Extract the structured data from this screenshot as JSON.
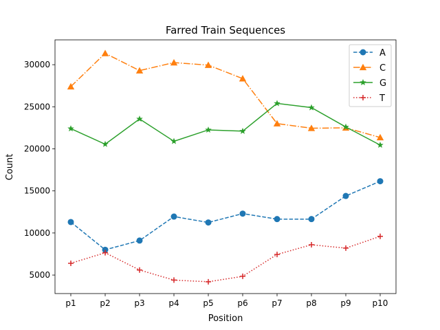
{
  "chart_data": {
    "type": "line",
    "title": "Farred Train Sequences",
    "xlabel": "Position",
    "ylabel": "Count",
    "categories": [
      "p1",
      "p2",
      "p3",
      "p4",
      "p5",
      "p6",
      "p7",
      "p8",
      "p9",
      "p10"
    ],
    "ylim": [
      2800,
      32950
    ],
    "yticks": [
      5000,
      10000,
      15000,
      20000,
      25000,
      30000
    ],
    "grid": false,
    "legend_position": "top-right",
    "series": [
      {
        "name": "A",
        "color": "#1f77b4",
        "line_style": "dashed",
        "marker": "circle",
        "values": [
          11300,
          8000,
          9100,
          11950,
          11250,
          12300,
          11650,
          11650,
          14400,
          16150
        ]
      },
      {
        "name": "C",
        "color": "#ff7f0e",
        "line_style": "dashdot",
        "marker": "triangle",
        "values": [
          27400,
          31350,
          29300,
          30250,
          29950,
          28350,
          23000,
          22450,
          22500,
          21350
        ]
      },
      {
        "name": "G",
        "color": "#2ca02c",
        "line_style": "solid",
        "marker": "star",
        "values": [
          22400,
          20550,
          23550,
          20900,
          22250,
          22100,
          25400,
          24900,
          22600,
          20450
        ]
      },
      {
        "name": "T",
        "color": "#d62728",
        "line_style": "dotted",
        "marker": "plus",
        "values": [
          6400,
          7650,
          5600,
          4400,
          4200,
          4850,
          7450,
          8600,
          8200,
          9600
        ]
      }
    ]
  }
}
